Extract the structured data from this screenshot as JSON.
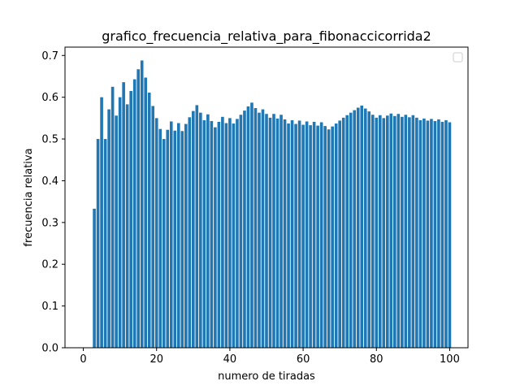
{
  "chart_data": {
    "type": "bar",
    "title": "grafico_frecuencia_relativa_para_fibonaccicorrida2",
    "xlabel": "numero de tiradas",
    "ylabel": "frecuencia relativa",
    "xlim": [
      -5,
      105
    ],
    "ylim": [
      0.0,
      0.72
    ],
    "xticks": [
      0,
      20,
      40,
      60,
      80,
      100
    ],
    "xtick_labels": [
      "0",
      "20",
      "40",
      "60",
      "80",
      "100"
    ],
    "yticks": [
      0.0,
      0.1,
      0.2,
      0.3,
      0.4,
      0.5,
      0.6,
      0.7
    ],
    "ytick_labels": [
      "0.0",
      "0.1",
      "0.2",
      "0.3",
      "0.4",
      "0.5",
      "0.6",
      "0.7"
    ],
    "grid": false,
    "legend": "top-right",
    "bar_color": "#1f77b4",
    "x": [
      3,
      4,
      5,
      6,
      7,
      8,
      9,
      10,
      11,
      12,
      13,
      14,
      15,
      16,
      17,
      18,
      19,
      20,
      21,
      22,
      23,
      24,
      25,
      26,
      27,
      28,
      29,
      30,
      31,
      32,
      33,
      34,
      35,
      36,
      37,
      38,
      39,
      40,
      41,
      42,
      43,
      44,
      45,
      46,
      47,
      48,
      49,
      50,
      51,
      52,
      53,
      54,
      55,
      56,
      57,
      58,
      59,
      60,
      61,
      62,
      63,
      64,
      65,
      66,
      67,
      68,
      69,
      70,
      71,
      72,
      73,
      74,
      75,
      76,
      77,
      78,
      79,
      80,
      81,
      82,
      83,
      84,
      85,
      86,
      87,
      88,
      89,
      90,
      91,
      92,
      93,
      94,
      95,
      96,
      97,
      98,
      99,
      100
    ],
    "values": [
      0.333,
      0.5,
      0.6,
      0.5,
      0.571,
      0.625,
      0.556,
      0.6,
      0.636,
      0.583,
      0.615,
      0.643,
      0.667,
      0.688,
      0.647,
      0.611,
      0.579,
      0.55,
      0.524,
      0.5,
      0.522,
      0.542,
      0.52,
      0.538,
      0.519,
      0.536,
      0.552,
      0.567,
      0.581,
      0.563,
      0.545,
      0.559,
      0.543,
      0.528,
      0.541,
      0.553,
      0.538,
      0.55,
      0.537,
      0.548,
      0.558,
      0.568,
      0.578,
      0.587,
      0.574,
      0.563,
      0.571,
      0.56,
      0.551,
      0.56,
      0.549,
      0.558,
      0.547,
      0.537,
      0.545,
      0.536,
      0.544,
      0.534,
      0.542,
      0.533,
      0.541,
      0.532,
      0.54,
      0.531,
      0.523,
      0.53,
      0.537,
      0.544,
      0.551,
      0.557,
      0.563,
      0.569,
      0.575,
      0.58,
      0.573,
      0.566,
      0.558,
      0.551,
      0.557,
      0.55,
      0.556,
      0.561,
      0.555,
      0.56,
      0.553,
      0.558,
      0.552,
      0.557,
      0.551,
      0.545,
      0.549,
      0.544,
      0.548,
      0.543,
      0.547,
      0.541,
      0.545,
      0.54
    ]
  }
}
